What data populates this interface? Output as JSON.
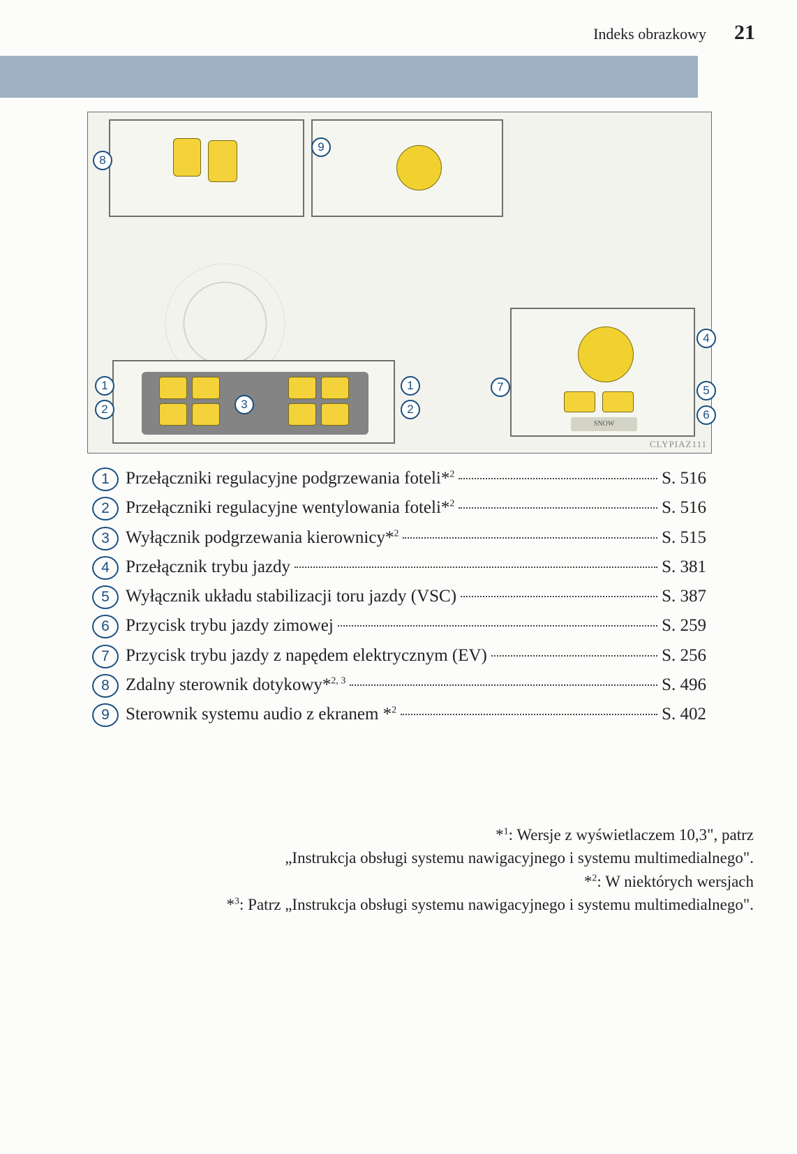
{
  "header": {
    "section": "Indeks obrazkowy",
    "page_number": "21"
  },
  "figure": {
    "code": "CLYPIAZ111",
    "colors": {
      "highlight": "#f4d33a",
      "panel": "#848484",
      "outline": "#1a4f80",
      "bg": "#f3f3ee",
      "bluebar": "#9fb1c2"
    },
    "br_snow_label": "SNOW",
    "callouts": [
      "1",
      "2",
      "3",
      "4",
      "5",
      "6",
      "7",
      "8",
      "9"
    ]
  },
  "index": [
    {
      "n": "1",
      "label": "Przełączniki regulacyjne podgrzewania foteli*",
      "sup": "2",
      "page": "S. 516"
    },
    {
      "n": "2",
      "label": "Przełączniki regulacyjne wentylowania foteli*",
      "sup": "2",
      "page": "S. 516"
    },
    {
      "n": "3",
      "label": "Wyłącznik podgrzewania kierownicy*",
      "sup": "2",
      "page": "S. 515"
    },
    {
      "n": "4",
      "label": "Przełącznik trybu jazdy",
      "sup": "",
      "page": "S. 381"
    },
    {
      "n": "5",
      "label": "Wyłącznik układu stabilizacji toru jazdy (VSC)",
      "sup": "",
      "page": "S. 387"
    },
    {
      "n": "6",
      "label": "Przycisk trybu jazdy zimowej",
      "sup": "",
      "page": "S. 259"
    },
    {
      "n": "7",
      "label": "Przycisk trybu jazdy z napędem elektrycznym (EV)",
      "sup": "",
      "page": "S. 256"
    },
    {
      "n": "8",
      "label": "Zdalny sterownik dotykowy*",
      "sup": "2, 3",
      "page": "S. 496"
    },
    {
      "n": "9",
      "label": "Sterownik systemu audio z ekranem *",
      "sup": "2",
      "page": "S. 402"
    }
  ],
  "footnotes": {
    "f1_sup": "1",
    "f1a": "*",
    "f1b": ": Wersje z wyświetlaczem 10,3\", patrz",
    "f1c": "„Instrukcja obsługi systemu nawigacyjnego i systemu multimedialnego\".",
    "f2_sup": "2",
    "f2": ": W niektórych wersjach",
    "f3_sup": "3",
    "f3": ": Patrz  „Instrukcja obsługi systemu nawigacyjnego i systemu multimedialnego\"."
  }
}
